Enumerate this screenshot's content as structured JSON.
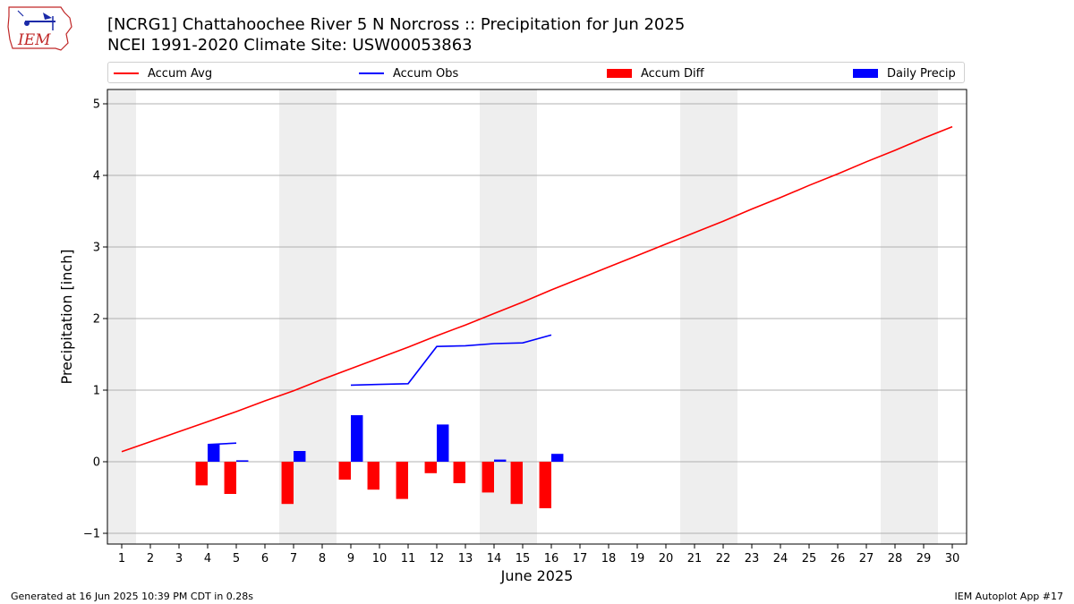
{
  "title_line1": "[NCRG1] Chattahoochee River 5 N Norcross :: Precipitation for Jun 2025",
  "title_line2": "NCEI 1991-2020 Climate Site: USW00053863",
  "logo_text": "IEM",
  "footer_left": "Generated at 16 Jun 2025 10:39 PM CDT in 0.28s",
  "footer_right": "IEM Autoplot App #17",
  "colors": {
    "avg": "#ff0000",
    "obs": "#0000ff",
    "diff": "#ff0000",
    "precip": "#0000ff",
    "weekend_shade": "#eeeeee",
    "grid": "#b0b0b0"
  },
  "legend": {
    "avg": "Accum Avg",
    "obs": "Accum Obs",
    "diff": "Accum Diff",
    "precip": "Daily Precip"
  },
  "chart_data": {
    "type": "bar",
    "xlabel": "June 2025",
    "ylabel": "Precipitation [inch]",
    "xlim": [
      0.5,
      30.5
    ],
    "ylim": [
      -1.15,
      5.2
    ],
    "yticks": [
      -1,
      0,
      1,
      2,
      3,
      4,
      5
    ],
    "grid": "horizontal",
    "legend_position": "top",
    "days": [
      1,
      2,
      3,
      4,
      5,
      6,
      7,
      8,
      9,
      10,
      11,
      12,
      13,
      14,
      15,
      16,
      17,
      18,
      19,
      20,
      21,
      22,
      23,
      24,
      25,
      26,
      27,
      28,
      29,
      30
    ],
    "weekend_days": [
      1,
      7,
      8,
      14,
      15,
      21,
      22,
      28,
      29
    ],
    "series": [
      {
        "name": "Accum Avg",
        "type": "line",
        "values": [
          0.14,
          0.28,
          0.42,
          0.56,
          0.7,
          0.85,
          0.99,
          1.15,
          1.3,
          1.45,
          1.6,
          1.76,
          1.91,
          2.07,
          2.23,
          2.4,
          2.56,
          2.72,
          2.88,
          3.04,
          3.2,
          3.36,
          3.53,
          3.69,
          3.86,
          4.02,
          4.19,
          4.35,
          4.52,
          4.68
        ]
      },
      {
        "name": "Accum Obs",
        "type": "line",
        "values": [
          null,
          null,
          null,
          0.24,
          0.26,
          null,
          null,
          null,
          1.07,
          1.08,
          1.09,
          1.61,
          1.62,
          1.65,
          1.66,
          1.77,
          null,
          null,
          null,
          null,
          null,
          null,
          null,
          null,
          null,
          null,
          null,
          null,
          null,
          null
        ]
      },
      {
        "name": "Accum Diff",
        "type": "bar",
        "values": [
          null,
          null,
          null,
          -0.33,
          -0.45,
          null,
          -0.59,
          null,
          -0.25,
          -0.39,
          -0.52,
          -0.16,
          -0.3,
          -0.43,
          -0.59,
          -0.65,
          null,
          null,
          null,
          null,
          null,
          null,
          null,
          null,
          null,
          null,
          null,
          null,
          null,
          null
        ]
      },
      {
        "name": "Daily Precip",
        "type": "bar",
        "values": [
          null,
          null,
          null,
          0.24,
          0.02,
          null,
          0.15,
          null,
          0.65,
          null,
          null,
          0.52,
          null,
          0.03,
          null,
          0.11,
          null,
          null,
          null,
          null,
          null,
          null,
          null,
          null,
          null,
          null,
          null,
          null,
          null,
          null
        ]
      }
    ]
  }
}
